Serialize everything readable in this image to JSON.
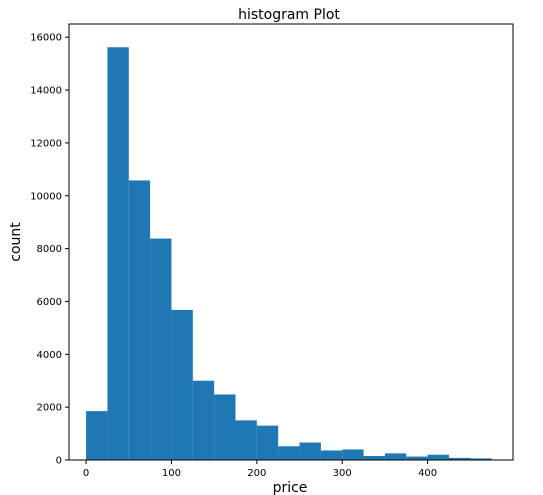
{
  "chart_data": {
    "type": "bar",
    "title": "histogram Plot",
    "xlabel": "price",
    "ylabel": "count",
    "xlim": [
      -20,
      500
    ],
    "ylim": [
      0,
      16500
    ],
    "xticks": [
      0,
      100,
      200,
      300,
      400
    ],
    "yticks": [
      0,
      2000,
      4000,
      6000,
      8000,
      10000,
      12000,
      14000,
      16000
    ],
    "bin_edges": [
      0,
      25,
      50,
      75,
      100,
      125,
      150,
      175,
      200,
      225,
      250,
      275,
      300,
      325,
      350,
      375,
      400,
      425,
      450,
      475
    ],
    "values": [
      1850,
      15620,
      10580,
      8380,
      5680,
      3000,
      2480,
      1500,
      1300,
      520,
      660,
      360,
      400,
      150,
      250,
      130,
      200,
      80,
      60
    ],
    "bar_color": "#1f77b4",
    "grid": false
  }
}
